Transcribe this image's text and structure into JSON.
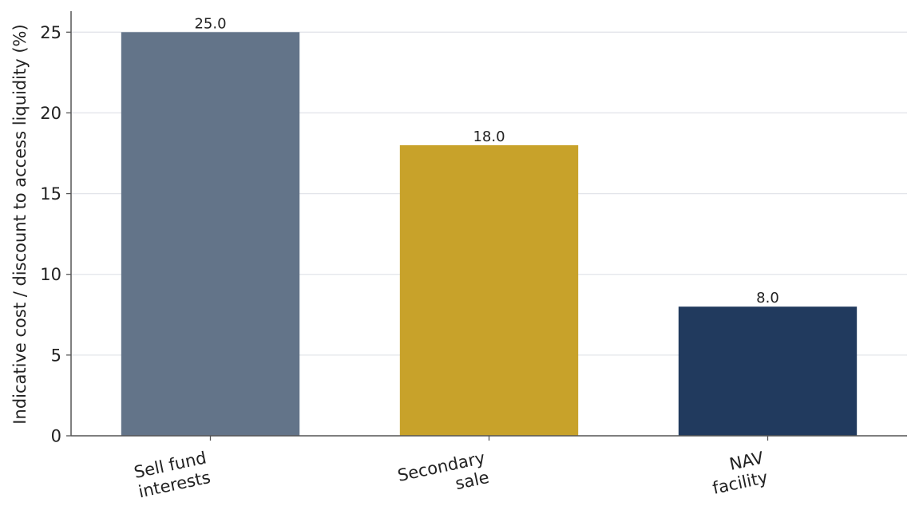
{
  "chart_data": {
    "type": "bar",
    "categories": [
      "Sell fund\ninterests",
      "Secondary\nsale",
      "NAV\nfacility"
    ],
    "values": [
      25.0,
      18.0,
      8.0
    ],
    "value_labels": [
      "25.0",
      "18.0",
      "8.0"
    ],
    "bar_colors": [
      "#637489",
      "#c8a22a",
      "#213a5e"
    ],
    "title": "",
    "xlabel": "",
    "ylabel": "Indicative cost / discount to access liquidity (%)",
    "ylim": [
      0,
      26.3
    ],
    "yticks": [
      0,
      5,
      10,
      15,
      20,
      25
    ],
    "grid": "horizontal",
    "legend": "none"
  }
}
